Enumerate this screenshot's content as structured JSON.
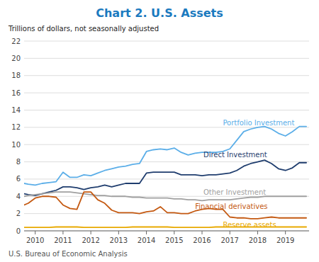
{
  "chart_data": {
    "type": "line",
    "title": "Chart 2. U.S. Assets",
    "subtitle": "Trillions of dollars, not seasonally adjusted",
    "footer": "U.S. Bureau of Economic Analysis",
    "color": "#1b7abf",
    "xlim": [
      2009.6,
      2019.85
    ],
    "ylim": [
      0,
      22
    ],
    "xticks": [
      2010,
      2011,
      2012,
      2013,
      2014,
      2015,
      2016,
      2017,
      2018,
      2019
    ],
    "yticks": [
      0,
      2,
      4,
      6,
      8,
      10,
      12,
      14,
      16,
      18,
      20,
      22
    ],
    "grid": true,
    "x": [
      2009.6,
      2009.75,
      2010.0,
      2010.25,
      2010.5,
      2010.75,
      2011.0,
      2011.25,
      2011.5,
      2011.75,
      2012.0,
      2012.25,
      2012.5,
      2012.75,
      2013.0,
      2013.25,
      2013.5,
      2013.75,
      2014.0,
      2014.25,
      2014.5,
      2014.75,
      2015.0,
      2015.25,
      2015.5,
      2015.75,
      2016.0,
      2016.25,
      2016.5,
      2016.75,
      2017.0,
      2017.25,
      2017.5,
      2017.75,
      2018.0,
      2018.25,
      2018.5,
      2018.75,
      2019.0,
      2019.25,
      2019.5,
      2019.75
    ],
    "series": [
      {
        "color": "#5baee8",
        "values": [
          5.5,
          5.4,
          5.3,
          5.5,
          5.6,
          5.7,
          6.8,
          6.2,
          6.2,
          6.5,
          6.4,
          6.7,
          7.0,
          7.2,
          7.4,
          7.5,
          7.7,
          7.8,
          9.2,
          9.4,
          9.5,
          9.4,
          9.6,
          9.1,
          8.8,
          9.0,
          9.1,
          9.1,
          9.1,
          9.2,
          9.5,
          10.5,
          11.5,
          11.8,
          12.0,
          12.1,
          11.8,
          11.3,
          11.0,
          11.5,
          12.1,
          12.1
        ]
      },
      {
        "color": "#1f3d6e",
        "values": [
          4.3,
          4.2,
          4.1,
          4.3,
          4.5,
          4.7,
          5.1,
          5.1,
          5.0,
          4.8,
          5.0,
          5.1,
          5.3,
          5.1,
          5.3,
          5.5,
          5.5,
          5.5,
          6.7,
          6.8,
          6.8,
          6.8,
          6.8,
          6.5,
          6.5,
          6.5,
          6.4,
          6.5,
          6.5,
          6.6,
          6.7,
          7.0,
          7.5,
          7.8,
          8.0,
          8.2,
          7.8,
          7.2,
          7.0,
          7.3,
          7.9,
          7.9
        ]
      },
      {
        "color": "#a0a0a0",
        "values": [
          4.0,
          4.1,
          4.2,
          4.3,
          4.4,
          4.5,
          4.5,
          4.5,
          4.4,
          4.3,
          4.2,
          4.1,
          4.1,
          4.0,
          4.0,
          4.0,
          3.9,
          3.9,
          3.8,
          3.8,
          3.8,
          3.8,
          3.7,
          3.7,
          3.6,
          3.6,
          3.5,
          3.6,
          3.6,
          3.6,
          3.6,
          3.7,
          3.8,
          3.9,
          3.9,
          4.0,
          4.0,
          4.0,
          4.0,
          4.0,
          4.0,
          4.0
        ]
      },
      {
        "color": "#c45911",
        "values": [
          3.0,
          3.2,
          3.8,
          4.0,
          4.0,
          3.9,
          3.0,
          2.6,
          2.5,
          4.5,
          4.5,
          3.6,
          3.2,
          2.4,
          2.1,
          2.1,
          2.1,
          2.0,
          2.2,
          2.3,
          2.8,
          2.1,
          2.1,
          2.0,
          2.0,
          2.3,
          2.5,
          2.6,
          2.5,
          2.5,
          1.6,
          1.5,
          1.5,
          1.4,
          1.4,
          1.5,
          1.6,
          1.5,
          1.5,
          1.5,
          1.5,
          1.5
        ]
      },
      {
        "color": "#e8a900",
        "values": [
          0.4,
          0.4,
          0.4,
          0.4,
          0.4,
          0.45,
          0.45,
          0.45,
          0.45,
          0.4,
          0.4,
          0.4,
          0.4,
          0.4,
          0.4,
          0.4,
          0.45,
          0.45,
          0.45,
          0.45,
          0.45,
          0.45,
          0.4,
          0.4,
          0.4,
          0.4,
          0.4,
          0.4,
          0.45,
          0.45,
          0.45,
          0.45,
          0.45,
          0.45,
          0.45,
          0.45,
          0.45,
          0.45,
          0.45,
          0.45,
          0.45,
          0.45
        ]
      }
    ],
    "annotations": [
      {
        "text": "Portfolio Investment",
        "x": 2016.75,
        "y": 12.55,
        "color": "#5baee8"
      },
      {
        "text": "Direct Investment",
        "x": 2016.05,
        "y": 8.85,
        "color": "#1f3d6e"
      },
      {
        "text": "Other Investment",
        "x": 2016.05,
        "y": 4.45,
        "color": "#a0a0a0"
      },
      {
        "text": "Financial derivatives",
        "x": 2015.75,
        "y": 2.85,
        "color": "#c45911"
      },
      {
        "text": "Reserve assets",
        "x": 2016.75,
        "y": 0.68,
        "color": "#e8a900"
      }
    ]
  }
}
